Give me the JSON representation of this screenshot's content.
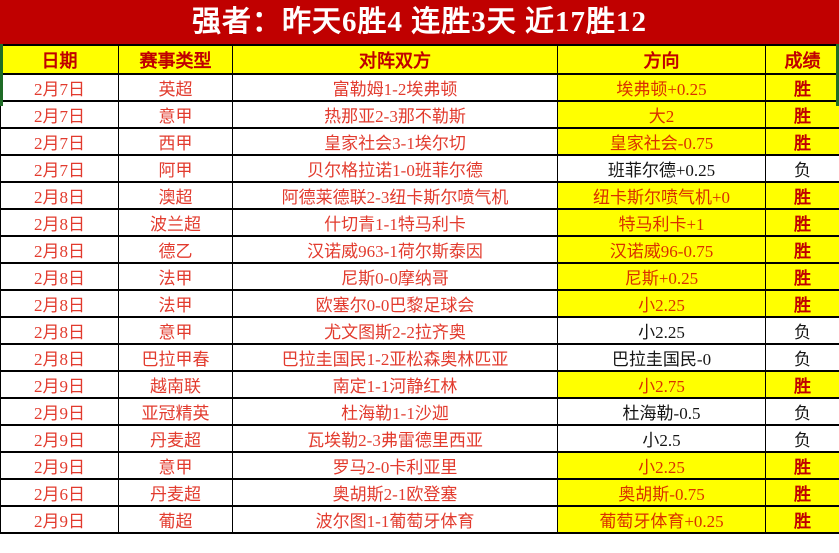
{
  "title": "强者：昨天6胜4  连胜3天  近17胜12",
  "table": {
    "headers": [
      "日期",
      "赛事类型",
      "对阵双方",
      "方向",
      "成绩"
    ],
    "rows": [
      {
        "date": "2月7日",
        "league": "英超",
        "match": "富勒姆1-2埃弗顿",
        "direction": "埃弗顿+0.25",
        "result": "胜"
      },
      {
        "date": "2月7日",
        "league": "意甲",
        "match": "热那亚2-3那不勒斯",
        "direction": "大2",
        "result": "胜"
      },
      {
        "date": "2月7日",
        "league": "西甲",
        "match": "皇家社会3-1埃尔切",
        "direction": "皇家社会-0.75",
        "result": "胜"
      },
      {
        "date": "2月7日",
        "league": "阿甲",
        "match": "贝尔格拉诺1-0班菲尔德",
        "direction": "班菲尔德+0.25",
        "result": "负"
      },
      {
        "date": "2月8日",
        "league": "澳超",
        "match": "阿德莱德联2-3纽卡斯尔喷气机",
        "direction": "纽卡斯尔喷气机+0",
        "result": "胜"
      },
      {
        "date": "2月8日",
        "league": "波兰超",
        "match": "什切青1-1特马利卡",
        "direction": "特马利卡+1",
        "result": "胜"
      },
      {
        "date": "2月8日",
        "league": "德乙",
        "match": "汉诺威963-1荷尔斯泰因",
        "direction": "汉诺威96-0.75",
        "result": "胜"
      },
      {
        "date": "2月8日",
        "league": "法甲",
        "match": "尼斯0-0摩纳哥",
        "direction": "尼斯+0.25",
        "result": "胜"
      },
      {
        "date": "2月8日",
        "league": "法甲",
        "match": "欧塞尔0-0巴黎足球会",
        "direction": "小2.25",
        "result": "胜"
      },
      {
        "date": "2月8日",
        "league": "意甲",
        "match": "尤文图斯2-2拉齐奥",
        "direction": "小2.25",
        "result": "负"
      },
      {
        "date": "2月8日",
        "league": "巴拉甲春",
        "match": "巴拉圭国民1-2亚松森奥林匹亚",
        "direction": "巴拉圭国民-0",
        "result": "负"
      },
      {
        "date": "2月9日",
        "league": "越南联",
        "match": "南定1-1河静红林",
        "direction": "小2.75",
        "result": "胜"
      },
      {
        "date": "2月9日",
        "league": "亚冠精英",
        "match": "杜海勒1-1沙迦",
        "direction": "杜海勒-0.5",
        "result": "负"
      },
      {
        "date": "2月9日",
        "league": "丹麦超",
        "match": "瓦埃勒2-3弗雷德里西亚",
        "direction": "小2.5",
        "result": "负"
      },
      {
        "date": "2月9日",
        "league": "意甲",
        "match": "罗马2-0卡利亚里",
        "direction": "小2.25",
        "result": "胜"
      },
      {
        "date": "2月6日",
        "league": "丹麦超",
        "match": "奥胡斯2-1欧登塞",
        "direction": "奥胡斯-0.75",
        "result": "胜"
      },
      {
        "date": "2月9日",
        "league": "葡超",
        "match": "波尔图1-1葡萄牙体育",
        "direction": "葡萄牙体育+0.25",
        "result": "胜"
      }
    ],
    "win_label": "胜",
    "lose_label": "负"
  },
  "colors": {
    "title-bg": "#c00000",
    "highlight": "#ffff00",
    "header-red": "#c00000",
    "row-red": "#e23b2e",
    "dir-win": "#d93000",
    "result-win": "#c00000",
    "grid": "#000000",
    "pagebreak-green": "#1e6b26"
  }
}
